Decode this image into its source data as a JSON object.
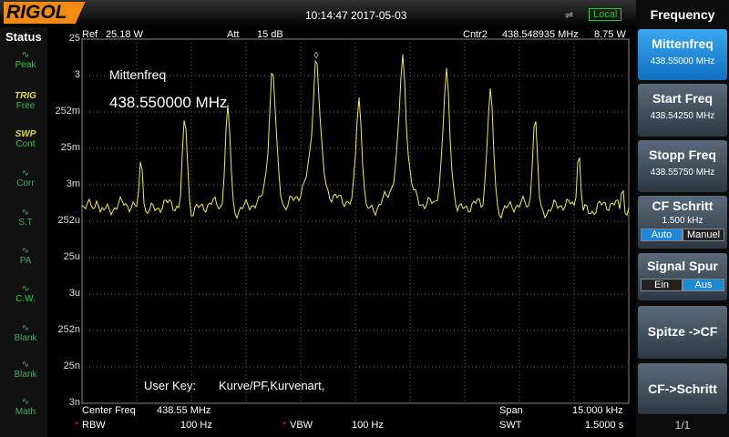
{
  "header": {
    "logo": "RIGOL",
    "datetime": "10:14:47 2017-05-03",
    "mode": "Local"
  },
  "status": {
    "title": "Status",
    "items": [
      {
        "label": "Peak"
      },
      {
        "top": "TRIG",
        "label": "Free"
      },
      {
        "top": "SWP",
        "label": "Cont"
      },
      {
        "label": "Corr"
      },
      {
        "label": "S.T"
      },
      {
        "label": "PA"
      },
      {
        "label": "C.W."
      },
      {
        "label": "Blank"
      },
      {
        "label": "Blank"
      },
      {
        "label": "Math"
      }
    ]
  },
  "display": {
    "ref_label": "Ref",
    "ref": "25.18 W",
    "att_label": "Att",
    "att": "15 dB",
    "marker": "Cntr2",
    "marker_freq": "438.548935 MHz",
    "marker_power": "8.75 W",
    "y_labels": [
      "25",
      "3",
      "252m",
      "25m",
      "3m",
      "252u",
      "25u",
      "3u",
      "252n",
      "25n",
      "3n"
    ],
    "annotation_title": "Mittenfreq",
    "annotation_value": "438.550000 MHz",
    "user_key": "User Key:",
    "user_key_value": "Kurve/PF,Kurvenart,"
  },
  "footer": {
    "center_label": "Center Freq",
    "center": "438.55 MHz",
    "span_label": "Span",
    "span": "15.000 kHz",
    "flag": "*",
    "rbw_label": "RBW",
    "rbw": "100 Hz",
    "vbw_label": "VBW",
    "vbw": "100 Hz",
    "swt_label": "SWT",
    "swt": "1.5000 s"
  },
  "menu": {
    "title": "Frequency",
    "center": {
      "label": "Mittenfreq",
      "value": "438.55000 MHz"
    },
    "start": {
      "label": "Start Freq",
      "value": "438.54250 MHz"
    },
    "stop": {
      "label": "Stopp Freq",
      "value": "438.55750 MHz"
    },
    "step": {
      "label": "CF Schritt",
      "value": "1.500 kHz",
      "auto": "Auto",
      "manual": "Manuel"
    },
    "spur": {
      "label": "Signal Spur",
      "on": "Ein",
      "off": "Aus"
    },
    "peak_cf": {
      "label": "Spitze ->CF"
    },
    "cf_step": {
      "label": "CF->Schritt"
    },
    "page": "1/1"
  }
}
